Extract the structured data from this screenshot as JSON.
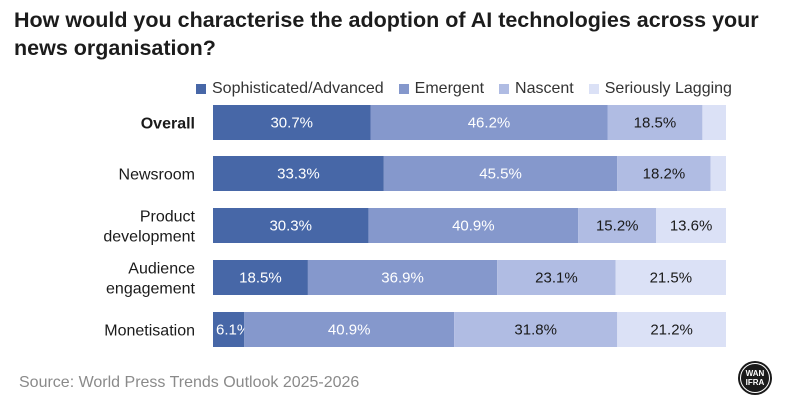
{
  "title": "How would you characterise the adoption of AI technologies across your news organisation?",
  "source": "Source: World Press Trends Outlook 2025-2026",
  "logo": {
    "text": "WAN IFRA",
    "icon": "wan-ifra-logo"
  },
  "colors": {
    "sophisticated": "#4767a7",
    "emergent": "#8598cc",
    "nascent": "#b0bce3",
    "lagging": "#dbe1f6"
  },
  "legend": [
    {
      "label": "Sophisticated/Advanced",
      "color": "#4767a7"
    },
    {
      "label": "Emergent",
      "color": "#8598cc"
    },
    {
      "label": "Nascent",
      "color": "#b0bce3"
    },
    {
      "label": "Seriously Lagging",
      "color": "#dbe1f6"
    }
  ],
  "chart_data": {
    "type": "bar",
    "orientation": "horizontal",
    "stacked": true,
    "title": "How would you characterise the adoption of AI technologies across your news organisation?",
    "categories": [
      "Overall",
      "Newsroom",
      "Product development",
      "Audience engagement",
      "Monetisation"
    ],
    "bold_categories": [
      "Overall"
    ],
    "xlim": [
      0,
      100
    ],
    "grid": false,
    "legend_position": "top",
    "series": [
      {
        "name": "Sophisticated/Advanced",
        "color": "#4767a7",
        "values": [
          30.7,
          33.3,
          30.3,
          18.5,
          6.1
        ],
        "labels": [
          "30.7%",
          "33.3%",
          "30.3%",
          "18.5%",
          "6.1%"
        ]
      },
      {
        "name": "Emergent",
        "color": "#8598cc",
        "values": [
          46.2,
          45.5,
          40.9,
          36.9,
          40.9
        ],
        "labels": [
          "46.2%",
          "45.5%",
          "40.9%",
          "36.9%",
          "40.9%"
        ]
      },
      {
        "name": "Nascent",
        "color": "#b0bce3",
        "values": [
          18.5,
          18.2,
          15.2,
          23.1,
          31.8
        ],
        "labels": [
          "18.5%",
          "18.2%",
          "15.2%",
          "23.1%",
          "31.8%"
        ]
      },
      {
        "name": "Seriously Lagging",
        "color": "#dbe1f6",
        "values": [
          4.6,
          3.0,
          13.6,
          21.5,
          21.2
        ],
        "labels": [
          "",
          "",
          "13.6%",
          "21.5%",
          "21.2%"
        ]
      }
    ]
  }
}
